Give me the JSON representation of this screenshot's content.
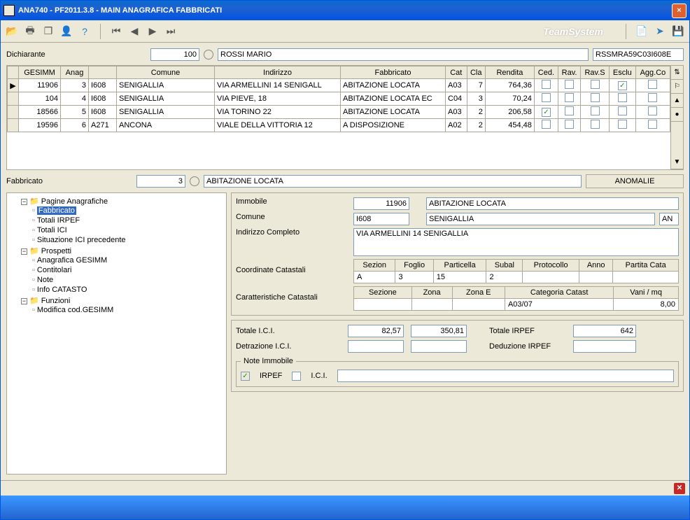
{
  "window": {
    "title": "ANA740  - PF2011.3.8 -  MAIN ANAGRAFICA FABBRICATI",
    "brand": "TeamSystem"
  },
  "dichiarante": {
    "label": "Dichiarante",
    "code": "100",
    "name": "ROSSI MARIO",
    "cf": "RSSMRA59C03I608E"
  },
  "grid": {
    "columns": [
      "GESIMM",
      "Anag",
      "",
      "Comune",
      "Indirizzo",
      "Fabbricato",
      "Cat",
      "Cla",
      "Rendita",
      "Ced.",
      "Rav.",
      "Rav.S",
      "Esclu",
      "Agg.Co"
    ],
    "rows": [
      {
        "sel": "▶",
        "gesimm": "11906",
        "anag": "3",
        "cod": "I608",
        "comune": "SENIGALLIA",
        "indirizzo": "VIA ARMELLINI 14 SENIGALL",
        "fabbricato": "ABITAZIONE LOCATA",
        "cat": "A03",
        "cla": "7",
        "rendita": "764,36",
        "ced": false,
        "rav": false,
        "ravs": false,
        "esclu": true,
        "agg": false
      },
      {
        "sel": "",
        "gesimm": "104",
        "anag": "4",
        "cod": "I608",
        "comune": "SENIGALLIA",
        "indirizzo": "VIA PIEVE, 18",
        "fabbricato": "ABITAZIONE LOCATA EC",
        "cat": "C04",
        "cla": "3",
        "rendita": "70,24",
        "ced": false,
        "rav": false,
        "ravs": false,
        "esclu": false,
        "agg": false
      },
      {
        "sel": "",
        "gesimm": "18566",
        "anag": "5",
        "cod": "I608",
        "comune": "SENIGALLIA",
        "indirizzo": "VIA TORINO 22",
        "fabbricato": "ABITAZIONE LOCATA",
        "cat": "A03",
        "cla": "2",
        "rendita": "206,58",
        "ced": true,
        "rav": false,
        "ravs": false,
        "esclu": false,
        "agg": false
      },
      {
        "sel": "",
        "gesimm": "19596",
        "anag": "6",
        "cod": "A271",
        "comune": "ANCONA",
        "indirizzo": "VIALE DELLA VITTORIA 12",
        "fabbricato": "A DISPOSIZIONE",
        "cat": "A02",
        "cla": "2",
        "rendita": "454,48",
        "ced": false,
        "rav": false,
        "ravs": false,
        "esclu": false,
        "agg": false
      }
    ]
  },
  "fabbricato_row": {
    "label": "Fabbricato",
    "num": "3",
    "desc": "ABITAZIONE LOCATA",
    "anomalie_btn": "ANOMALIE"
  },
  "tree": {
    "root1": "Pagine Anagrafiche",
    "r1_items": [
      "Fabbricato",
      "Totali IRPEF",
      "Totali ICI",
      "Situazione ICI precedente"
    ],
    "root2": "Prospetti",
    "r2_items": [
      "Anagrafica GESIMM",
      "Contitolari",
      "Note",
      "Info CATASTO"
    ],
    "root3": "Funzioni",
    "r3_items": [
      "Modifica cod.GESIMM"
    ]
  },
  "detail": {
    "immobile_lbl": "Immobile",
    "immobile_code": "11906",
    "immobile_desc": "ABITAZIONE LOCATA",
    "comune_lbl": "Comune",
    "comune_code": "I608",
    "comune_desc": "SENIGALLIA",
    "comune_prov": "AN",
    "indirizzo_lbl": "Indirizzo Completo",
    "indirizzo_val": "VIA ARMELLINI 14 SENIGALLIA",
    "coord_lbl": "Coordinate Catastali",
    "coord_headers": [
      "Sezion",
      "Foglio",
      "Particella",
      "Subal",
      "Protocollo",
      "Anno",
      "Partita Cata"
    ],
    "coord_row": [
      "A",
      "3",
      "15",
      "2",
      "",
      "",
      ""
    ],
    "caratt_lbl": "Caratteristiche Catastali",
    "caratt_headers": [
      "Sezione",
      "Zona",
      "Zona E",
      "Categoria Catast",
      "Vani / mq"
    ],
    "caratt_row": [
      "",
      "",
      "",
      "A03/07",
      "8,00"
    ],
    "totale_ici_lbl": "Totale I.C.I.",
    "totale_ici_1": "82,57",
    "totale_ici_2": "350,81",
    "totale_irpef_lbl": "Totale IRPEF",
    "totale_irpef_val": "642",
    "detr_ici_lbl": "Detrazione I.C.I.",
    "ded_irpef_lbl": "Deduzione IRPEF",
    "note_legend": "Note Immobile",
    "note_irpef": "IRPEF",
    "note_ici": "I.C.I."
  }
}
